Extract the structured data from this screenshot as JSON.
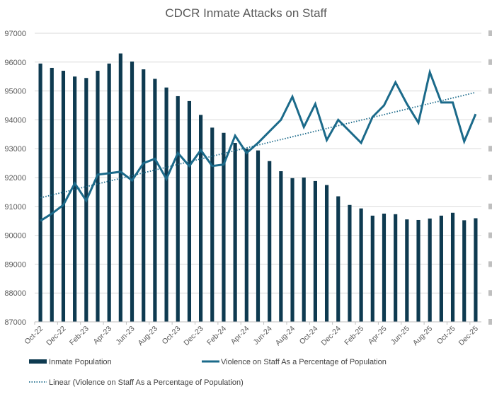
{
  "chart_data": {
    "type": "bar",
    "title": "CDCR Inmate Attacks on Staff",
    "xlabel": "",
    "ylabel": "",
    "ylim": [
      87000,
      97000
    ],
    "yticks": [
      "97000",
      "96000",
      "95000",
      "94000",
      "93000",
      "92000",
      "91000",
      "90000",
      "89000",
      "88000",
      "87000"
    ],
    "grid": true,
    "legend_position": "bottom",
    "categories": [
      "Oct-22",
      "Nov-22",
      "Dec-22",
      "Jan-23",
      "Feb-23",
      "Mar-23",
      "Apr-23",
      "May-23",
      "Jun-23",
      "Jul-23",
      "Aug-23",
      "Sep-23",
      "Oct-23",
      "Nov-23",
      "Dec-23",
      "Jan-24",
      "Feb-24",
      "Mar-24",
      "Apr-24",
      "May-24",
      "Jun-24",
      "Jul-24",
      "Aug-24",
      "Sep-24",
      "Oct-24",
      "Nov-24",
      "Dec-24",
      "Jan-25",
      "Feb-25",
      "Mar-25",
      "Apr-25",
      "May-25",
      "Jun-25",
      "Jul-25",
      "Aug-25",
      "Sep-25",
      "Oct-25",
      "Nov-25",
      "Dec-25"
    ],
    "x_tick_labels": [
      "Oct-22",
      "Dec-22",
      "Feb-23",
      "Apr-23",
      "Jun-23",
      "Aug-23",
      "Oct-23",
      "Dec-23",
      "Feb-24",
      "Apr-24",
      "Jun-24",
      "Aug-24",
      "Oct-24",
      "Dec-24",
      "Feb-25",
      "Apr-25",
      "Jun-25",
      "Aug-25",
      "Oct-25",
      "Dec-25"
    ],
    "series": [
      {
        "name": "Inmate Population",
        "type": "bar",
        "axis": "primary",
        "color": "#0e3a50",
        "values": [
          95950,
          95800,
          95700,
          95500,
          95450,
          95700,
          95950,
          96300,
          96020,
          95750,
          95420,
          95120,
          94820,
          94650,
          94170,
          93730,
          93550,
          93200,
          93000,
          92940,
          92570,
          92220,
          91980,
          92000,
          91880,
          91740,
          91350,
          91050,
          90930,
          90680,
          90750,
          90730,
          90550,
          90530,
          90580,
          90680,
          90780,
          90520,
          90590
        ]
      },
      {
        "name": "Violence on Staff As a Percentage of Population",
        "type": "line",
        "axis": "secondary",
        "axis_labels_visible": false,
        "color": "#1b6a8a",
        "values_in_primary_axis_scale": [
          90500,
          90750,
          91050,
          91800,
          91200,
          92100,
          92150,
          92200,
          91900,
          92500,
          92650,
          91950,
          92850,
          92400,
          92950,
          92400,
          92450,
          93450,
          92850,
          93200,
          93600,
          94000,
          94800,
          93750,
          94550,
          93300,
          94000,
          93600,
          93200,
          94100,
          94500,
          95300,
          94550,
          93900,
          95650,
          94600,
          94600,
          93250,
          94200
        ]
      },
      {
        "name": "Linear (Violence on Staff As a Percentage of Population)",
        "type": "trendline",
        "style": "dotted",
        "color": "#1b6a8a",
        "start_value_in_primary_axis_scale": 91300,
        "end_value_in_primary_axis_scale": 94950
      }
    ]
  }
}
